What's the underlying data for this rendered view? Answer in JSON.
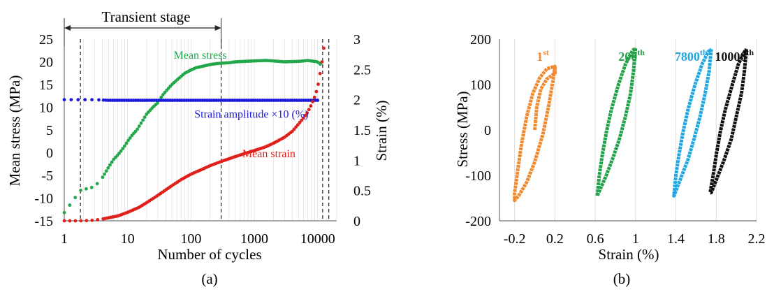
{
  "chart_data": [
    {
      "type": "scatter",
      "caption": "(a)",
      "xlabel": "Number of cycles",
      "xscale": "log",
      "xlim": [
        1,
        20000
      ],
      "x_ticks": [
        1,
        10,
        100,
        1000,
        10000
      ],
      "x_tick_labels": [
        "1",
        "10",
        "100",
        "1000",
        "10000"
      ],
      "ylabel_left": "Mean stress (MPa)",
      "ylim_left": [
        -15,
        25
      ],
      "y_ticks_left": [
        -15,
        -10,
        -5,
        0,
        5,
        10,
        15,
        20,
        25
      ],
      "ylabel_right": "Strain (%)",
      "ylim_right": [
        0,
        3
      ],
      "y_ticks_right": [
        0,
        0.5,
        1,
        1.5,
        2,
        2.5,
        3
      ],
      "y_tick_labels_right": [
        "0",
        "0.5",
        "1",
        "1.5",
        "2",
        "2.5",
        "3"
      ],
      "grid": "vertical",
      "stage_label": "Transient stage",
      "stage_range": [
        1,
        300
      ],
      "dashed_lines_x": [
        1.8,
        300,
        12000,
        15000
      ],
      "series": [
        {
          "name": "Mean stress",
          "axis": "left",
          "color": "#22a84a",
          "x": [
            1,
            1.8,
            3,
            4,
            5,
            6,
            7,
            8,
            9,
            10,
            12,
            14,
            16,
            18,
            20,
            25,
            30,
            35,
            40,
            50,
            60,
            70,
            80,
            100,
            120,
            150,
            200,
            250,
            300,
            400,
            500,
            700,
            1000,
            1500,
            2000,
            3000,
            5000,
            7000,
            10000,
            11000
          ],
          "y": [
            -13.2,
            -8.3,
            -7.5,
            -5.5,
            -3.2,
            -1.5,
            -0.5,
            0.5,
            1.5,
            2.5,
            4.0,
            5.0,
            6.3,
            7.5,
            8.5,
            10.0,
            11.0,
            12.5,
            13.5,
            15.0,
            16.0,
            16.8,
            17.5,
            18.2,
            18.7,
            19.0,
            19.4,
            19.6,
            19.7,
            19.8,
            20.0,
            20.1,
            20.2,
            20.3,
            20.2,
            20.0,
            20.1,
            20.3,
            20.0,
            19.5
          ]
        },
        {
          "name": "Strain amplitude ×10 (%)",
          "axis": "right",
          "color": "#1a1adb",
          "x": [
            1,
            1.8,
            3,
            5,
            10,
            20,
            50,
            100,
            200,
            500,
            1000,
            2000,
            5000,
            10000
          ],
          "y": [
            2.0,
            2.0,
            2.0,
            1.99,
            1.99,
            1.99,
            1.99,
            1.99,
            1.99,
            1.99,
            1.99,
            1.99,
            1.99,
            1.99
          ]
        },
        {
          "name": "Mean strain",
          "axis": "right",
          "color": "#e0201a",
          "x": [
            1,
            1.8,
            3,
            4,
            5,
            7,
            10,
            15,
            20,
            30,
            50,
            70,
            100,
            150,
            200,
            300,
            500,
            700,
            1000,
            1500,
            2000,
            3000,
            4000,
            5000,
            6000,
            7000,
            8000,
            9000,
            10000,
            11000,
            12000,
            12500
          ],
          "y": [
            0.0,
            0.0,
            0.01,
            0.03,
            0.05,
            0.08,
            0.14,
            0.22,
            0.3,
            0.42,
            0.58,
            0.68,
            0.77,
            0.85,
            0.91,
            0.98,
            1.06,
            1.11,
            1.16,
            1.22,
            1.28,
            1.38,
            1.48,
            1.6,
            1.7,
            1.8,
            1.92,
            2.05,
            2.2,
            2.45,
            2.7,
            2.85
          ]
        }
      ]
    },
    {
      "type": "line",
      "caption": "(b)",
      "xlabel": "Strain (%)",
      "ylabel": "Stress (MPa)",
      "xlim": [
        -0.35,
        2.2
      ],
      "x_ticks": [
        -0.2,
        0.2,
        0.6,
        1.0,
        1.4,
        1.8,
        2.2
      ],
      "x_tick_labels": [
        "-0.2",
        "0.2",
        "0.6",
        "1",
        "1.4",
        "1.8",
        "2.2"
      ],
      "ylim": [
        -200,
        200
      ],
      "y_ticks": [
        -200,
        -100,
        0,
        100,
        200
      ],
      "grid": "vertical",
      "series": [
        {
          "name": "1st",
          "label_base": "1",
          "label_sup": "st",
          "color": "#f08a30",
          "path": [
            [
              0.0,
              0
            ],
            [
              0.02,
              50
            ],
            [
              0.06,
              90
            ],
            [
              0.12,
              112
            ],
            [
              0.2,
              125
            ],
            [
              0.2,
              140
            ],
            [
              0.18,
              108
            ],
            [
              0.14,
              55
            ],
            [
              0.08,
              -10
            ],
            [
              0.0,
              -70
            ],
            [
              -0.08,
              -115
            ],
            [
              -0.16,
              -145
            ],
            [
              -0.2,
              -155
            ],
            [
              -0.2,
              -140
            ],
            [
              -0.17,
              -90
            ],
            [
              -0.13,
              -30
            ],
            [
              -0.08,
              30
            ],
            [
              -0.02,
              80
            ],
            [
              0.05,
              115
            ],
            [
              0.12,
              135
            ],
            [
              0.2,
              140
            ]
          ]
        },
        {
          "name": "200th",
          "label_base": "200",
          "label_sup": "th",
          "color": "#21a148",
          "path": [
            [
              1.0,
              180
            ],
            [
              0.98,
              130
            ],
            [
              0.95,
              80
            ],
            [
              0.9,
              30
            ],
            [
              0.84,
              -20
            ],
            [
              0.77,
              -65
            ],
            [
              0.7,
              -105
            ],
            [
              0.63,
              -140
            ],
            [
              0.62,
              -145
            ],
            [
              0.64,
              -100
            ],
            [
              0.67,
              -55
            ],
            [
              0.71,
              -5
            ],
            [
              0.76,
              45
            ],
            [
              0.83,
              100
            ],
            [
              0.9,
              145
            ],
            [
              0.97,
              175
            ],
            [
              1.0,
              180
            ]
          ]
        },
        {
          "name": "7800th",
          "label_base": "7800",
          "label_sup": "th",
          "color": "#1ea7e1",
          "path": [
            [
              1.75,
              178
            ],
            [
              1.73,
              130
            ],
            [
              1.69,
              80
            ],
            [
              1.64,
              30
            ],
            [
              1.58,
              -20
            ],
            [
              1.52,
              -65
            ],
            [
              1.45,
              -105
            ],
            [
              1.39,
              -140
            ],
            [
              1.38,
              -145
            ],
            [
              1.4,
              -100
            ],
            [
              1.43,
              -55
            ],
            [
              1.47,
              -5
            ],
            [
              1.52,
              45
            ],
            [
              1.59,
              100
            ],
            [
              1.66,
              145
            ],
            [
              1.72,
              172
            ],
            [
              1.75,
              178
            ]
          ]
        },
        {
          "name": "10000th",
          "label_base": "10000",
          "label_sup": "th",
          "color": "#111111",
          "path": [
            [
              2.1,
              178
            ],
            [
              2.08,
              130
            ],
            [
              2.05,
              80
            ],
            [
              2.0,
              30
            ],
            [
              1.95,
              -20
            ],
            [
              1.88,
              -65
            ],
            [
              1.81,
              -105
            ],
            [
              1.75,
              -138
            ],
            [
              1.74,
              -138
            ],
            [
              1.77,
              -100
            ],
            [
              1.8,
              -55
            ],
            [
              1.84,
              -5
            ],
            [
              1.89,
              45
            ],
            [
              1.96,
              100
            ],
            [
              2.02,
              145
            ],
            [
              2.08,
              172
            ],
            [
              2.1,
              178
            ]
          ]
        }
      ]
    }
  ]
}
